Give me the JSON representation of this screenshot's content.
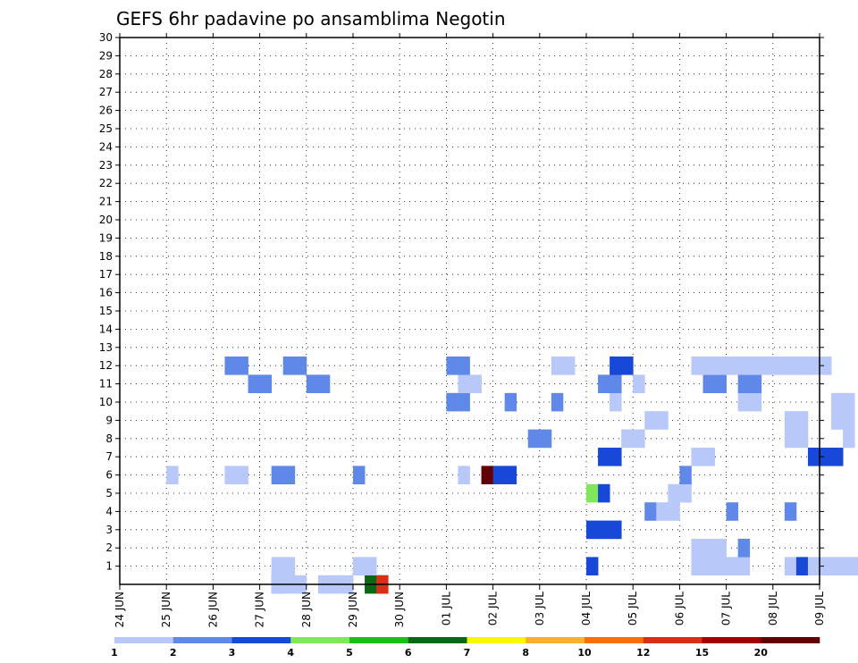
{
  "chart_data": {
    "type": "heatmap",
    "title": "GEFS 6hr padavine po ansamblima Negotin",
    "xlabel": "",
    "ylabel": "",
    "x_tick_labels": [
      "24 JUN",
      "25 JUN",
      "26 JUN",
      "27 JUN",
      "28 JUN",
      "29 JUN",
      "30 JUN",
      "01 JUL",
      "02 JUL",
      "03 JUL",
      "04 JUL",
      "05 JUL",
      "06 JUL",
      "07 JUL",
      "08 JUL",
      "09 JUL"
    ],
    "x_range_days": [
      0,
      15
    ],
    "y_tick_labels": [
      "1",
      "2",
      "3",
      "4",
      "5",
      "6",
      "7",
      "8",
      "9",
      "10",
      "11",
      "12",
      "13",
      "14",
      "15",
      "16",
      "17",
      "18",
      "19",
      "20",
      "21",
      "22",
      "23",
      "24",
      "25",
      "26",
      "27",
      "28",
      "29",
      "30"
    ],
    "y_range": [
      0,
      30
    ],
    "grid": true,
    "colorbar": {
      "labels": [
        "1",
        "2",
        "3",
        "4",
        "5",
        "6",
        "7",
        "8",
        "10",
        "12",
        "15",
        "20"
      ],
      "colors": [
        "#b8c8f8",
        "#6088e8",
        "#1848d8",
        "#80e858",
        "#18c018",
        "#086818",
        "#f8f800",
        "#f8b030",
        "#f87000",
        "#d83018",
        "#a00000",
        "#600000"
      ]
    },
    "cells_note": "each cell = [time_step_index (6hr steps from 24 JUN 00Z), member, color_class_index]",
    "cells": [
      [
        13,
        0,
        1
      ],
      [
        13,
        0,
        0
      ],
      [
        14,
        0,
        0
      ],
      [
        15,
        0,
        0
      ],
      [
        17,
        0,
        0
      ],
      [
        18,
        0,
        0
      ],
      [
        19,
        0,
        0
      ],
      [
        21,
        0,
        5
      ],
      [
        22,
        0,
        5
      ],
      [
        22,
        0,
        9
      ],
      [
        13,
        1,
        0
      ],
      [
        14,
        1,
        0
      ],
      [
        20,
        1,
        0
      ],
      [
        21,
        1,
        0
      ],
      [
        40,
        1,
        2
      ],
      [
        49,
        1,
        0
      ],
      [
        50,
        1,
        0
      ],
      [
        51,
        1,
        0
      ],
      [
        52,
        1,
        0
      ],
      [
        53,
        1,
        0
      ],
      [
        57,
        1,
        0
      ],
      [
        58,
        1,
        2
      ],
      [
        59,
        1,
        0
      ],
      [
        60,
        1,
        0
      ],
      [
        61,
        1,
        0
      ],
      [
        62,
        1,
        0
      ],
      [
        63,
        1,
        0
      ],
      [
        64,
        1,
        0
      ],
      [
        49,
        2,
        0
      ],
      [
        50,
        2,
        0
      ],
      [
        51,
        2,
        0
      ],
      [
        53,
        2,
        1
      ],
      [
        40,
        3,
        2
      ],
      [
        41,
        3,
        2
      ],
      [
        42,
        3,
        2
      ],
      [
        45,
        4,
        1
      ],
      [
        46,
        4,
        0
      ],
      [
        47,
        4,
        0
      ],
      [
        52,
        4,
        1
      ],
      [
        57,
        4,
        1
      ],
      [
        40,
        5,
        3
      ],
      [
        41,
        5,
        2
      ],
      [
        47,
        5,
        0
      ],
      [
        48,
        5,
        0
      ],
      [
        4,
        6,
        0
      ],
      [
        9,
        6,
        0
      ],
      [
        10,
        6,
        0
      ],
      [
        13,
        6,
        1
      ],
      [
        14,
        6,
        1
      ],
      [
        20,
        6,
        1
      ],
      [
        29,
        6,
        0
      ],
      [
        31,
        6,
        11
      ],
      [
        32,
        6,
        2
      ],
      [
        33,
        6,
        2
      ],
      [
        48,
        6,
        1
      ],
      [
        41,
        7,
        2
      ],
      [
        42,
        7,
        2
      ],
      [
        49,
        7,
        0
      ],
      [
        50,
        7,
        0
      ],
      [
        59,
        7,
        2
      ],
      [
        60,
        7,
        2
      ],
      [
        61,
        7,
        2
      ],
      [
        35,
        8,
        1
      ],
      [
        36,
        8,
        1
      ],
      [
        43,
        8,
        0
      ],
      [
        44,
        8,
        0
      ],
      [
        57,
        8,
        0
      ],
      [
        58,
        8,
        0
      ],
      [
        62,
        8,
        0
      ],
      [
        45,
        9,
        0
      ],
      [
        46,
        9,
        0
      ],
      [
        57,
        9,
        0
      ],
      [
        58,
        9,
        0
      ],
      [
        61,
        9,
        0
      ],
      [
        62,
        9,
        0
      ],
      [
        66,
        9,
        0
      ],
      [
        67,
        9,
        0
      ],
      [
        28,
        10,
        1
      ],
      [
        29,
        10,
        1
      ],
      [
        33,
        10,
        1
      ],
      [
        37,
        10,
        1
      ],
      [
        42,
        10,
        0
      ],
      [
        53,
        10,
        0
      ],
      [
        54,
        10,
        0
      ],
      [
        61,
        10,
        0
      ],
      [
        62,
        10,
        0
      ],
      [
        66,
        10,
        0
      ],
      [
        67,
        10,
        0
      ],
      [
        11,
        11,
        1
      ],
      [
        12,
        11,
        1
      ],
      [
        16,
        11,
        1
      ],
      [
        17,
        11,
        1
      ],
      [
        29,
        11,
        0
      ],
      [
        30,
        11,
        0
      ],
      [
        41,
        11,
        1
      ],
      [
        42,
        11,
        1
      ],
      [
        44,
        11,
        0
      ],
      [
        50,
        11,
        1
      ],
      [
        51,
        11,
        1
      ],
      [
        53,
        11,
        1
      ],
      [
        54,
        11,
        1
      ],
      [
        9,
        12,
        1
      ],
      [
        10,
        12,
        1
      ],
      [
        14,
        12,
        1
      ],
      [
        15,
        12,
        1
      ],
      [
        28,
        12,
        1
      ],
      [
        29,
        12,
        1
      ],
      [
        37,
        12,
        0
      ],
      [
        38,
        12,
        0
      ],
      [
        42,
        12,
        2
      ],
      [
        43,
        12,
        2
      ],
      [
        49,
        12,
        0
      ],
      [
        50,
        12,
        0
      ],
      [
        51,
        12,
        0
      ],
      [
        52,
        12,
        0
      ],
      [
        53,
        12,
        0
      ],
      [
        54,
        12,
        0
      ],
      [
        55,
        12,
        0
      ],
      [
        56,
        12,
        0
      ],
      [
        57,
        12,
        0
      ],
      [
        58,
        12,
        0
      ],
      [
        59,
        12,
        0
      ],
      [
        60,
        12,
        0
      ]
    ]
  }
}
